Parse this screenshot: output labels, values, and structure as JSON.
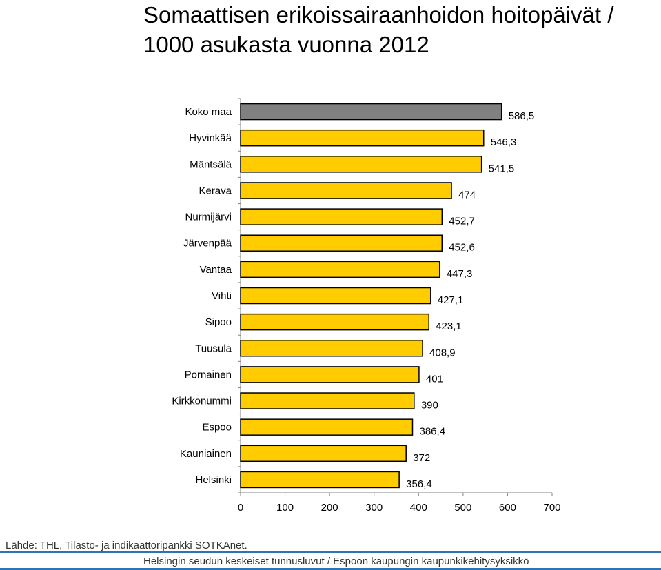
{
  "title": "Somaattisen erikoissairaanhoidon hoitopäivät / 1000 asukasta vuonna 2012",
  "source": "Lähde: THL, Tilasto- ja indikaattoripankki SOTKAnet.",
  "footer": "Helsingin seudun keskeiset tunnusluvut / Espoon kaupungin kaupunkikehitysyksikkö",
  "colors": {
    "highlight": "#808080",
    "bars": "#ffcc00",
    "outline": "#000000"
  },
  "chart_data": {
    "type": "bar",
    "orientation": "horizontal",
    "categories": [
      "Koko maa",
      "Hyvinkää",
      "Mäntsälä",
      "Kerava",
      "Nurmijärvi",
      "Järvenpää",
      "Vantaa",
      "Vihti",
      "Sipoo",
      "Tuusula",
      "Pornainen",
      "Kirkkonummi",
      "Espoo",
      "Kauniainen",
      "Helsinki"
    ],
    "values": [
      586.5,
      546.3,
      541.5,
      474,
      452.7,
      452.6,
      447.3,
      427.1,
      423.1,
      408.9,
      401,
      390,
      386.4,
      372,
      356.4
    ],
    "value_labels": [
      "586,5",
      "546,3",
      "541,5",
      "474",
      "452,7",
      "452,6",
      "447,3",
      "427,1",
      "423,1",
      "408,9",
      "401",
      "390",
      "386,4",
      "372",
      "356,4"
    ],
    "xlim": [
      0,
      700
    ],
    "xticks": [
      "0",
      "100",
      "200",
      "300",
      "400",
      "500",
      "600",
      "700"
    ],
    "grid": false
  }
}
